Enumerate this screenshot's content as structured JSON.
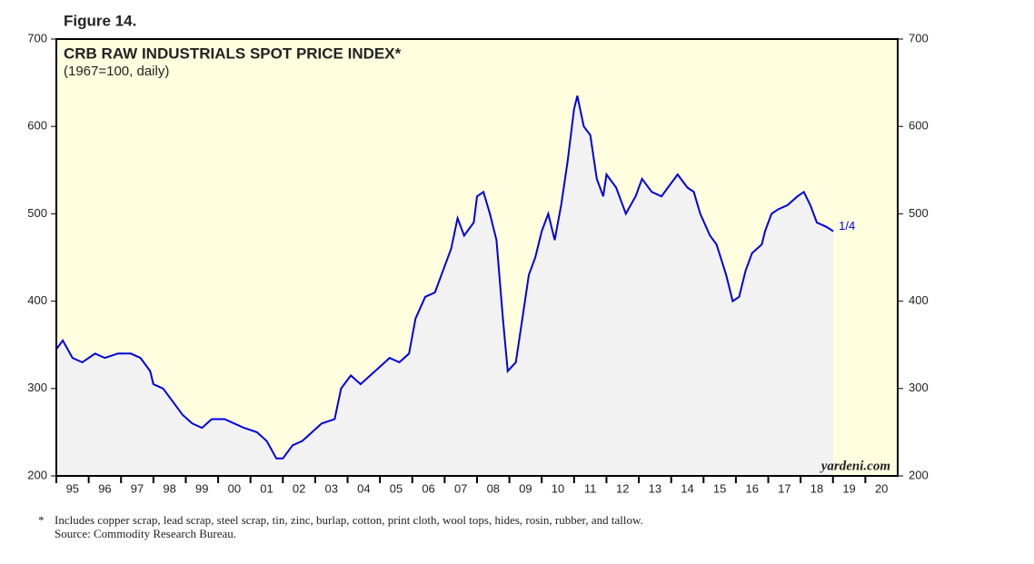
{
  "figure_label": "Figure 14.",
  "chart_data": {
    "type": "line",
    "title": "CRB RAW INDUSTRIALS SPOT PRICE INDEX*",
    "subtitle": "(1967=100, daily)",
    "annotations": [
      "1/4",
      "yardeni.com"
    ],
    "x": [
      1995.0,
      1995.2,
      1995.5,
      1995.8,
      1996.2,
      1996.5,
      1996.9,
      1997.3,
      1997.6,
      1997.9,
      1998.0,
      1998.3,
      1998.6,
      1998.9,
      1999.2,
      1999.5,
      1999.8,
      2000.2,
      2000.5,
      2000.8,
      2001.2,
      2001.5,
      2001.8,
      2002.0,
      2002.3,
      2002.6,
      2002.9,
      2003.2,
      2003.6,
      2003.8,
      2004.1,
      2004.4,
      2004.7,
      2005.0,
      2005.3,
      2005.6,
      2005.9,
      2006.1,
      2006.4,
      2006.7,
      2006.9,
      2007.2,
      2007.4,
      2007.6,
      2007.9,
      2008.0,
      2008.2,
      2008.4,
      2008.6,
      2008.8,
      2008.95,
      2009.2,
      2009.4,
      2009.6,
      2009.8,
      2010.0,
      2010.2,
      2010.4,
      2010.6,
      2010.8,
      2011.0,
      2011.1,
      2011.3,
      2011.5,
      2011.7,
      2011.9,
      2012.0,
      2012.3,
      2012.6,
      2012.9,
      2013.1,
      2013.4,
      2013.7,
      2013.9,
      2014.2,
      2014.5,
      2014.7,
      2014.9,
      2015.2,
      2015.4,
      2015.7,
      2015.9,
      2016.1,
      2016.3,
      2016.5,
      2016.8,
      2016.9,
      2017.1,
      2017.3,
      2017.6,
      2017.9,
      2018.1,
      2018.3,
      2018.5,
      2018.8,
      2019.01
    ],
    "series": [
      {
        "name": "CRB Raw Industrials",
        "color": "#0000dd",
        "values": [
          345,
          355,
          335,
          330,
          340,
          335,
          340,
          340,
          335,
          320,
          305,
          300,
          285,
          270,
          260,
          255,
          265,
          265,
          260,
          255,
          250,
          240,
          220,
          220,
          235,
          240,
          250,
          260,
          265,
          300,
          315,
          305,
          315,
          325,
          335,
          330,
          340,
          380,
          405,
          410,
          430,
          460,
          495,
          475,
          490,
          520,
          525,
          500,
          470,
          380,
          320,
          330,
          380,
          430,
          450,
          480,
          500,
          470,
          510,
          560,
          620,
          635,
          600,
          590,
          540,
          520,
          545,
          530,
          500,
          520,
          540,
          525,
          520,
          530,
          545,
          530,
          525,
          500,
          475,
          465,
          430,
          400,
          405,
          435,
          455,
          465,
          480,
          500,
          505,
          510,
          520,
          525,
          510,
          490,
          485,
          480
        ]
      }
    ],
    "xlim": [
      1995,
      2021
    ],
    "xticks": [
      {
        "value": 1995,
        "label": "95"
      },
      {
        "value": 1996,
        "label": "96"
      },
      {
        "value": 1997,
        "label": "97"
      },
      {
        "value": 1998,
        "label": "98"
      },
      {
        "value": 1999,
        "label": "99"
      },
      {
        "value": 2000,
        "label": "00"
      },
      {
        "value": 2001,
        "label": "01"
      },
      {
        "value": 2002,
        "label": "02"
      },
      {
        "value": 2003,
        "label": "03"
      },
      {
        "value": 2004,
        "label": "04"
      },
      {
        "value": 2005,
        "label": "05"
      },
      {
        "value": 2006,
        "label": "06"
      },
      {
        "value": 2007,
        "label": "07"
      },
      {
        "value": 2008,
        "label": "08"
      },
      {
        "value": 2009,
        "label": "09"
      },
      {
        "value": 2010,
        "label": "10"
      },
      {
        "value": 2011,
        "label": "11"
      },
      {
        "value": 2012,
        "label": "12"
      },
      {
        "value": 2013,
        "label": "13"
      },
      {
        "value": 2014,
        "label": "14"
      },
      {
        "value": 2015,
        "label": "15"
      },
      {
        "value": 2016,
        "label": "16"
      },
      {
        "value": 2017,
        "label": "17"
      },
      {
        "value": 2018,
        "label": "18"
      },
      {
        "value": 2019,
        "label": "19"
      },
      {
        "value": 2020,
        "label": "20"
      }
    ],
    "ylim": [
      200,
      700
    ],
    "yticks": [
      200,
      300,
      400,
      500,
      600,
      700
    ],
    "background": "#ffffe0",
    "area_color": "#f2f2f2"
  },
  "footnote": {
    "marker": "*",
    "lines": [
      "Includes copper scrap, lead scrap, steel scrap, tin, zinc, burlap, cotton, print cloth, wool tops, hides, rosin, rubber, and tallow.",
      "Source: Commodity Research Bureau."
    ]
  }
}
